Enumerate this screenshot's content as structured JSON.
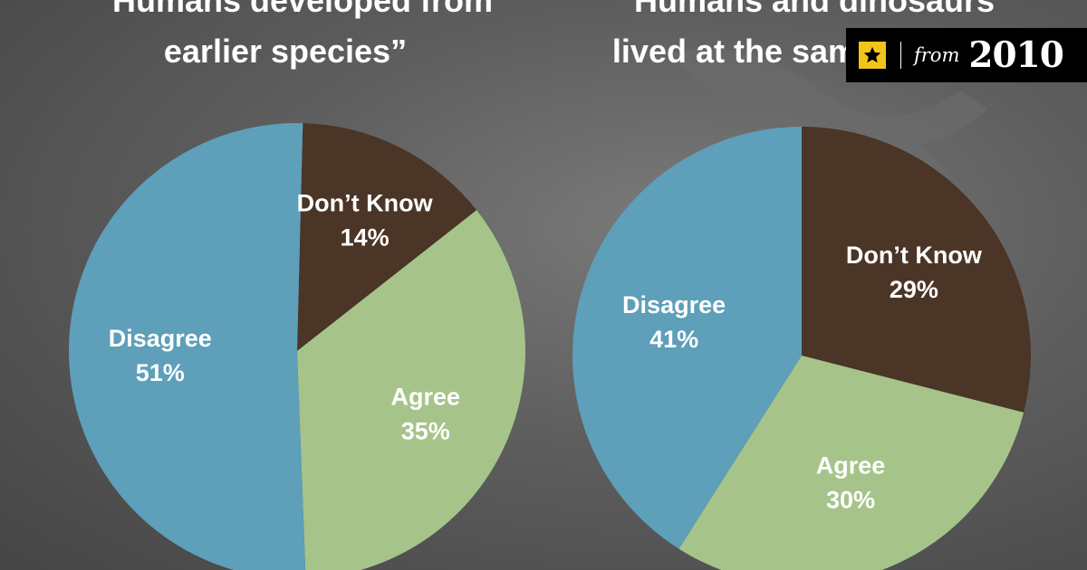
{
  "chart_data": [
    {
      "type": "pie",
      "title_lines": [
        "“Humans developed from",
        "earlier species”"
      ],
      "slices": [
        {
          "label": "Don’t Know",
          "value": 14,
          "value_label": "14%",
          "color": "#4a3526"
        },
        {
          "label": "Agree",
          "value": 35,
          "value_label": "35%",
          "color": "#a6c48a"
        },
        {
          "label": "Disagree",
          "value": 51,
          "value_label": "51%",
          "color": "#5e9fb9"
        }
      ]
    },
    {
      "type": "pie",
      "title_lines": [
        "“Humans and dinosaurs",
        "lived at the same time”"
      ],
      "slices": [
        {
          "label": "Don’t Know",
          "value": 29,
          "value_label": "29%",
          "color": "#4a3526"
        },
        {
          "label": "Agree",
          "value": 30,
          "value_label": "30%",
          "color": "#a6c48a"
        },
        {
          "label": "Disagree",
          "value": 41,
          "value_label": "41%",
          "color": "#5e9fb9"
        }
      ]
    }
  ],
  "badge": {
    "icon": "star-icon",
    "from_text": "from",
    "year_text": "2010",
    "accent_color": "#f2c51b"
  }
}
